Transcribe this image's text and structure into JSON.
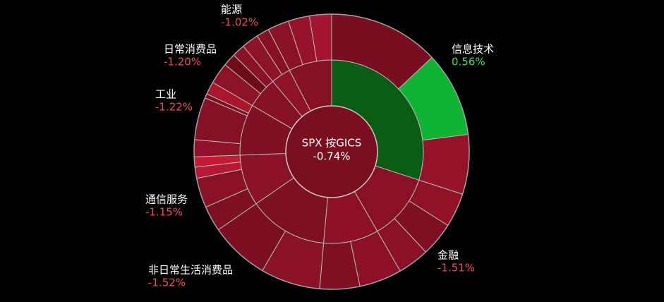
{
  "chart_data": {
    "type": "sunburst",
    "center": {
      "name": "SPX 按GICS",
      "value": -0.74,
      "value_label": "-0.74%",
      "color": "#7a0f20"
    },
    "sectors": [
      {
        "name": "信息技术",
        "value": 0.56,
        "value_label": "0.56%",
        "weight": 30,
        "color": "#0a5c13",
        "children": [
          {
            "weight": 13,
            "color": "#780e20"
          },
          {
            "weight": 10,
            "color": "#10b334"
          },
          {
            "weight": 7,
            "color": "#941329"
          }
        ]
      },
      {
        "name": "金融",
        "value": -1.51,
        "value_label": "-1.51%",
        "weight": 11.7,
        "color": "#881126",
        "children": [
          {
            "weight": 4,
            "color": "#8f1227"
          },
          {
            "weight": 4,
            "color": "#7e1023"
          },
          {
            "weight": 3.7,
            "color": "#8a1226"
          }
        ]
      },
      {
        "weight": 9.7,
        "color": "#8c1128",
        "children": [
          {
            "weight": 5,
            "color": "#8c1128"
          },
          {
            "weight": 4.7,
            "color": "#7f1023"
          }
        ]
      },
      {
        "name": "非日常生活消费品",
        "value": -1.52,
        "value_label": "-1.52%",
        "weight": 14,
        "color": "#7e1023",
        "children": [
          {
            "weight": 7,
            "color": "#8a1227"
          },
          {
            "weight": 7,
            "color": "#7c0f22"
          }
        ]
      },
      {
        "name": "通信服务",
        "value": -1.15,
        "value_label": "-1.15%",
        "weight": 9,
        "color": "#8a1227",
        "children": [
          {
            "weight": 3,
            "color": "#7d1022"
          },
          {
            "weight": 3.5,
            "color": "#8a1226"
          },
          {
            "weight": 1.3,
            "color": "#b51830"
          },
          {
            "weight": 1.2,
            "color": "#c41a35"
          }
        ]
      },
      {
        "name": "工业",
        "value": -1.22,
        "value_label": "-1.22%",
        "weight": 9,
        "color": "#801024",
        "children": [
          {
            "weight": 2,
            "color": "#901228"
          },
          {
            "weight": 5,
            "color": "#861125"
          },
          {
            "weight": 0.5,
            "color": "#7a0f21"
          },
          {
            "weight": 1.5,
            "color": "#a8162d"
          }
        ]
      },
      {
        "name": "日常消费品",
        "value": -1.2,
        "value_label": "-1.20%",
        "weight": 5.5,
        "color": "#841125",
        "children": [
          {
            "weight": 2.5,
            "color": "#8b1227"
          },
          {
            "weight": 1.5,
            "color": "#6e0c1c"
          },
          {
            "weight": 1.5,
            "color": "#881126"
          }
        ]
      },
      {
        "name": "能源",
        "value": -1.02,
        "value_label": "-1.02%",
        "weight": 3.5,
        "color": "#8e1228",
        "children": [
          {
            "weight": 2,
            "color": "#8e1228"
          },
          {
            "weight": 1.5,
            "color": "#861125"
          }
        ]
      },
      {
        "weight": 7.6,
        "color": "#861125",
        "children": [
          {
            "weight": 2.5,
            "color": "#8a1227"
          },
          {
            "weight": 2.5,
            "color": "#961329"
          },
          {
            "weight": 2.6,
            "color": "#a31530"
          }
        ]
      }
    ]
  }
}
